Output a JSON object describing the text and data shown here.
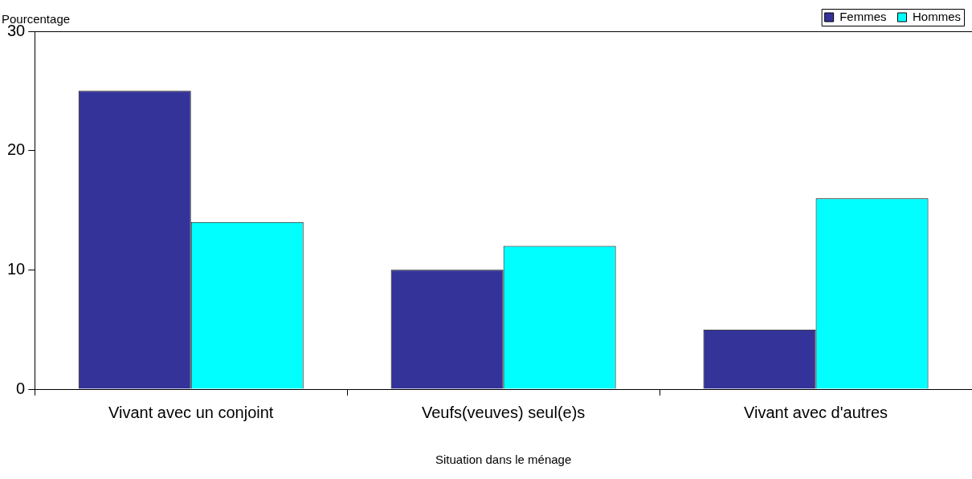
{
  "chart_data": {
    "type": "bar",
    "xlabel": "Situation dans le ménage",
    "ylabel": "Pourcentage",
    "categories": [
      "Vivant avec un conjoint",
      "Veufs(veuves) seul(e)s",
      "Vivant avec d'autres"
    ],
    "series": [
      {
        "name": "Femmes",
        "color": "#333399",
        "values": [
          25,
          10,
          5
        ]
      },
      {
        "name": "Hommes",
        "color": "#00ffff",
        "values": [
          14,
          12,
          16
        ]
      }
    ],
    "ylim": [
      0,
      30
    ],
    "yticks": [
      0,
      10,
      20,
      30
    ],
    "grid": false,
    "legend": "top right"
  }
}
